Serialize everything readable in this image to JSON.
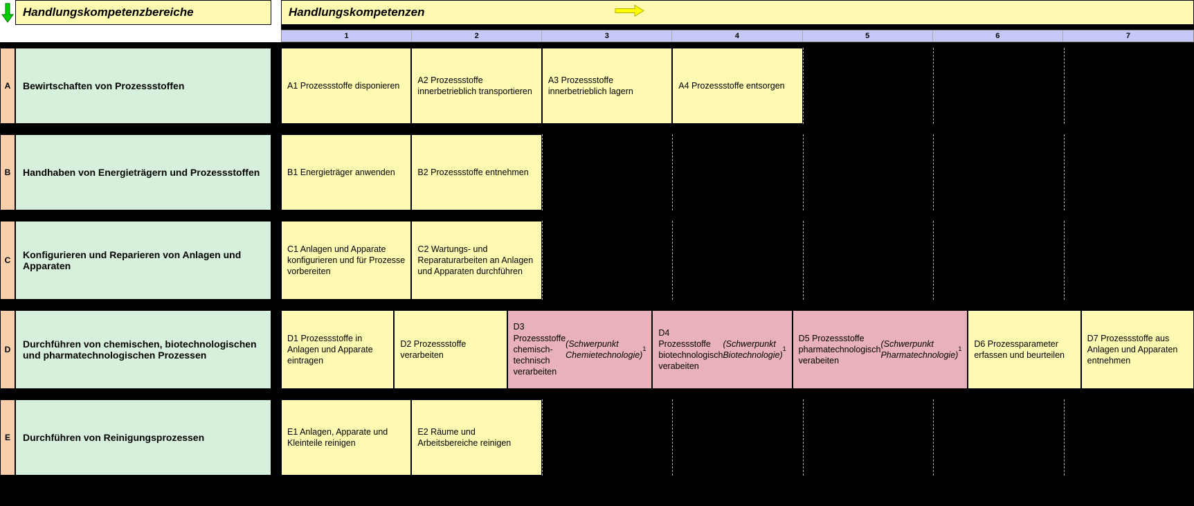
{
  "headers": {
    "bereiche": "Handlungskompetenzbereiche",
    "kompetenzen": "Handlungskompetenzen"
  },
  "columns": [
    "1",
    "2",
    "3",
    "4",
    "5",
    "6",
    "7"
  ],
  "colors": {
    "header_bg": "#fefab1",
    "bereich_bg": "#d7f0db",
    "letter_bg": "#f7cfab",
    "cell_bg": "#fefab1",
    "cell_pink_bg": "#e9b1b9",
    "numstrip_bg": "#c6c8f7",
    "arrow_down_fill": "#00d000",
    "arrow_down_stroke": "#007000",
    "arrow_right_fill": "#ffff00",
    "arrow_right_stroke": "#b0b000"
  },
  "rows": [
    {
      "letter": "A",
      "bereich": "Bewirtschaften von Prozessstoffen",
      "cells": [
        {
          "text": "A1  Prozessstoffe disponieren",
          "type": "std"
        },
        {
          "text": "A2  Prozessstoffe innerbetrieblich transportieren",
          "type": "std"
        },
        {
          "text": "A3  Prozessstoffe innerbetrieblich lagern",
          "type": "std"
        },
        {
          "text": "A4  Prozessstoffe entsorgen",
          "type": "std"
        },
        {
          "text": "",
          "type": "empty"
        },
        {
          "text": "",
          "type": "empty"
        },
        {
          "text": "",
          "type": "empty"
        }
      ]
    },
    {
      "letter": "B",
      "bereich": "Handhaben von Energieträgern und Prozessstoffen",
      "cells": [
        {
          "text": "B1  Energieträger anwenden",
          "type": "std"
        },
        {
          "text": "B2  Prozessstoffe entnehmen",
          "type": "std"
        },
        {
          "text": "",
          "type": "empty"
        },
        {
          "text": "",
          "type": "empty"
        },
        {
          "text": "",
          "type": "empty"
        },
        {
          "text": "",
          "type": "empty"
        },
        {
          "text": "",
          "type": "empty"
        }
      ]
    },
    {
      "letter": "C",
      "bereich": "Konfigurieren und Reparieren von Anlagen und Apparaten",
      "cells": [
        {
          "text": "C1  Anlagen und Apparate konfigurieren und für Prozesse vorbereiten",
          "type": "std"
        },
        {
          "text": "C2  Wartungs- und Reparaturarbeiten an Anlagen und Apparaten durchführen",
          "type": "std"
        },
        {
          "text": "",
          "type": "empty"
        },
        {
          "text": "",
          "type": "empty"
        },
        {
          "text": "",
          "type": "empty"
        },
        {
          "text": "",
          "type": "empty"
        },
        {
          "text": "",
          "type": "empty"
        }
      ]
    },
    {
      "letter": "D",
      "bereich": "Durchführen von chemischen, biotechnologischen und pharmatechnologischen Prozessen",
      "cells": [
        {
          "text": "D1  Prozessstoffe in Anlagen und Apparate eintragen",
          "type": "std"
        },
        {
          "text": "D2  Prozessstoffe verarbeiten",
          "type": "std"
        },
        {
          "html": "D3  Prozessstoffe chemisch-technisch verarbeiten <i>(Schwerpunkt Chemietechnologie)</i><span class='super'> 1</span>",
          "type": "pink"
        },
        {
          "html": "D4  Prozessstoffe biotechnologisch verabeiten <i>(Schwerpunkt Biotechnologie)</i> <span class='super'> 1</span>",
          "type": "pink"
        },
        {
          "html": "D5  Prozessstoffe pharmatechnologisch verabeiten <i>(Schwerpunkt Pharmatechnologie)</i><span class='super'> 1</span>",
          "type": "pink"
        },
        {
          "text": "D6  Prozessparameter erfassen und beurteilen",
          "type": "std"
        },
        {
          "text": "D7  Prozessstoffe aus Anlagen und Apparaten entnehmen",
          "type": "std"
        }
      ]
    },
    {
      "letter": "E",
      "bereich": "Durchführen von Reinigungsprozessen",
      "cells": [
        {
          "text": "E1  Anlagen, Apparate und Kleinteile reinigen",
          "type": "std"
        },
        {
          "text": "E2  Räume und Arbeitsbereiche reinigen",
          "type": "std"
        },
        {
          "text": "",
          "type": "empty"
        },
        {
          "text": "",
          "type": "empty"
        },
        {
          "text": "",
          "type": "empty"
        },
        {
          "text": "",
          "type": "empty"
        },
        {
          "text": "",
          "type": "empty"
        }
      ]
    }
  ]
}
